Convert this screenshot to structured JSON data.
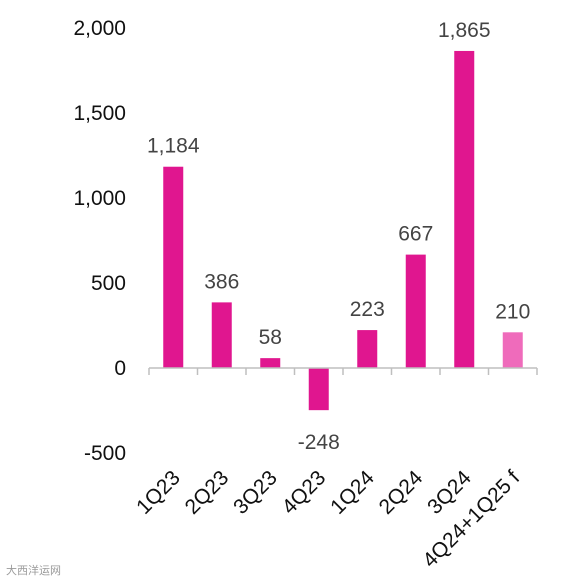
{
  "chart_data": {
    "type": "bar",
    "title": "",
    "xlabel": "",
    "ylabel": "",
    "categories": [
      "1Q23",
      "2Q23",
      "3Q23",
      "4Q23",
      "1Q24",
      "2Q24",
      "3Q24",
      "4Q24+1Q25 f"
    ],
    "values": [
      1184,
      386,
      58,
      -248,
      223,
      667,
      1865,
      210
    ],
    "value_labels": [
      "1,184",
      "386",
      "58",
      "-248",
      "223",
      "667",
      "1,865",
      "210"
    ],
    "ylim": [
      -500,
      2000
    ],
    "yticks": [
      -500,
      0,
      500,
      1000,
      1500,
      2000
    ],
    "ytick_labels": [
      "-500",
      "0",
      "500",
      "1,000",
      "1,500",
      "2,000"
    ],
    "grid": false,
    "legend": "none",
    "bar_colors": [
      "#e0168f",
      "#e0168f",
      "#e0168f",
      "#e0168f",
      "#e0168f",
      "#e0168f",
      "#e0168f",
      "#ef6bbb"
    ]
  },
  "watermark": "大西洋运网"
}
